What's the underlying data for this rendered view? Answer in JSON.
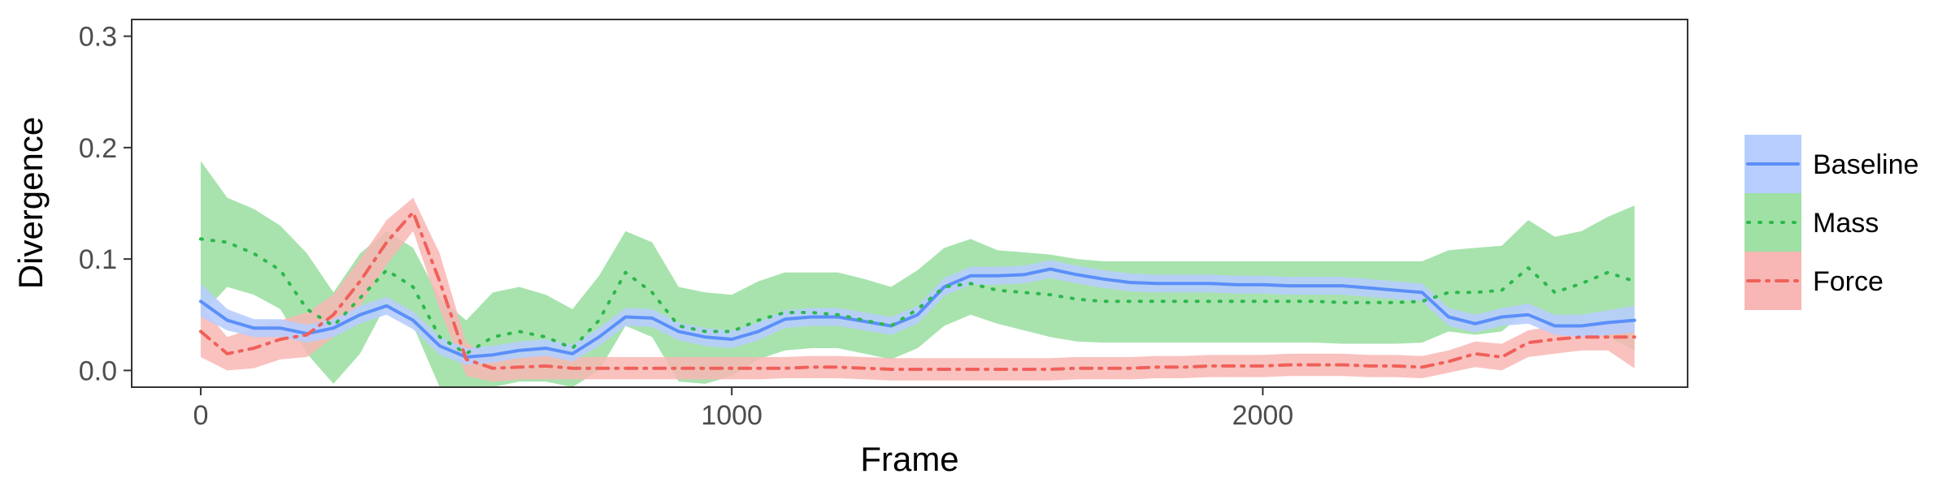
{
  "chart_data": {
    "type": "line",
    "title": "",
    "xlabel": "Frame",
    "ylabel": "Divergence",
    "xlim": [
      -130,
      2800
    ],
    "ylim": [
      -0.015,
      0.315
    ],
    "xticks": [
      0,
      1000,
      2000
    ],
    "xtick_labels": [
      "0",
      "1000",
      "2000"
    ],
    "yticks": [
      0.0,
      0.1,
      0.2,
      0.3
    ],
    "ytick_labels": [
      "0.0",
      "0.1",
      "0.2",
      "0.3"
    ],
    "grid": false,
    "legend_position": "right",
    "series": [
      {
        "name": "Baseline",
        "color": "#5b8ff9",
        "band_color": "#b7cdfd",
        "linestyle": "solid",
        "x": [
          0,
          50,
          100,
          150,
          200,
          250,
          300,
          350,
          400,
          450,
          500,
          550,
          600,
          650,
          700,
          750,
          800,
          850,
          900,
          950,
          1000,
          1050,
          1100,
          1150,
          1200,
          1250,
          1300,
          1350,
          1400,
          1450,
          1500,
          1550,
          1600,
          1650,
          1700,
          1750,
          1800,
          1850,
          1900,
          1950,
          2000,
          2050,
          2100,
          2150,
          2200,
          2250,
          2300,
          2350,
          2400,
          2450,
          2500,
          2550,
          2600,
          2650,
          2700
        ],
        "y": [
          0.062,
          0.045,
          0.038,
          0.038,
          0.033,
          0.038,
          0.05,
          0.058,
          0.045,
          0.022,
          0.012,
          0.014,
          0.018,
          0.02,
          0.015,
          0.03,
          0.048,
          0.047,
          0.035,
          0.03,
          0.028,
          0.035,
          0.046,
          0.048,
          0.048,
          0.044,
          0.04,
          0.05,
          0.075,
          0.085,
          0.085,
          0.086,
          0.091,
          0.086,
          0.082,
          0.079,
          0.078,
          0.078,
          0.078,
          0.077,
          0.077,
          0.076,
          0.076,
          0.076,
          0.074,
          0.072,
          0.07,
          0.048,
          0.042,
          0.048,
          0.05,
          0.04,
          0.04,
          0.043,
          0.045
        ],
        "lower": [
          0.048,
          0.036,
          0.03,
          0.03,
          0.025,
          0.03,
          0.042,
          0.05,
          0.037,
          0.014,
          0.005,
          0.007,
          0.011,
          0.013,
          0.008,
          0.022,
          0.04,
          0.039,
          0.027,
          0.022,
          0.02,
          0.027,
          0.038,
          0.04,
          0.04,
          0.036,
          0.032,
          0.042,
          0.067,
          0.077,
          0.077,
          0.078,
          0.083,
          0.078,
          0.074,
          0.071,
          0.07,
          0.07,
          0.07,
          0.069,
          0.069,
          0.068,
          0.068,
          0.068,
          0.066,
          0.064,
          0.062,
          0.04,
          0.034,
          0.04,
          0.042,
          0.032,
          0.03,
          0.032,
          0.034
        ],
        "upper": [
          0.078,
          0.055,
          0.046,
          0.046,
          0.041,
          0.046,
          0.058,
          0.066,
          0.053,
          0.03,
          0.02,
          0.022,
          0.026,
          0.028,
          0.023,
          0.038,
          0.056,
          0.055,
          0.043,
          0.038,
          0.036,
          0.043,
          0.054,
          0.056,
          0.056,
          0.052,
          0.048,
          0.058,
          0.083,
          0.093,
          0.093,
          0.094,
          0.099,
          0.094,
          0.09,
          0.087,
          0.086,
          0.086,
          0.086,
          0.085,
          0.085,
          0.084,
          0.084,
          0.084,
          0.082,
          0.08,
          0.078,
          0.056,
          0.05,
          0.056,
          0.06,
          0.05,
          0.05,
          0.054,
          0.058
        ]
      },
      {
        "name": "Mass",
        "color": "#2db84c",
        "band_color": "#9fe0a5",
        "linestyle": "dotted",
        "x": [
          0,
          50,
          100,
          150,
          200,
          250,
          300,
          350,
          400,
          450,
          500,
          550,
          600,
          650,
          700,
          750,
          800,
          850,
          900,
          950,
          1000,
          1050,
          1100,
          1150,
          1200,
          1250,
          1300,
          1350,
          1400,
          1450,
          1500,
          1550,
          1600,
          1650,
          1700,
          1750,
          1800,
          1850,
          1900,
          1950,
          2000,
          2050,
          2100,
          2150,
          2200,
          2250,
          2300,
          2350,
          2400,
          2450,
          2500,
          2550,
          2600,
          2650,
          2700
        ],
        "y": [
          0.118,
          0.115,
          0.105,
          0.09,
          0.055,
          0.04,
          0.065,
          0.09,
          0.075,
          0.03,
          0.015,
          0.03,
          0.035,
          0.03,
          0.02,
          0.045,
          0.088,
          0.07,
          0.04,
          0.035,
          0.035,
          0.045,
          0.052,
          0.052,
          0.05,
          0.045,
          0.04,
          0.055,
          0.075,
          0.078,
          0.072,
          0.07,
          0.068,
          0.064,
          0.062,
          0.062,
          0.062,
          0.062,
          0.062,
          0.062,
          0.062,
          0.062,
          0.062,
          0.061,
          0.061,
          0.061,
          0.062,
          0.07,
          0.07,
          0.072,
          0.092,
          0.07,
          0.078,
          0.088,
          0.08
        ],
        "lower": [
          0.05,
          0.075,
          0.068,
          0.055,
          0.015,
          -0.012,
          0.015,
          0.06,
          0.04,
          -0.015,
          -0.015,
          -0.015,
          -0.01,
          -0.01,
          -0.015,
          0.0,
          0.04,
          0.03,
          -0.01,
          -0.012,
          -0.005,
          0.01,
          0.018,
          0.02,
          0.02,
          0.015,
          0.01,
          0.02,
          0.04,
          0.05,
          0.042,
          0.036,
          0.03,
          0.026,
          0.025,
          0.025,
          0.025,
          0.025,
          0.025,
          0.025,
          0.025,
          0.025,
          0.025,
          0.024,
          0.024,
          0.024,
          0.025,
          0.035,
          0.032,
          0.035,
          0.055,
          0.035,
          0.035,
          0.03,
          0.018
        ],
        "upper": [
          0.188,
          0.155,
          0.145,
          0.13,
          0.105,
          0.07,
          0.105,
          0.125,
          0.11,
          0.065,
          0.045,
          0.07,
          0.075,
          0.068,
          0.055,
          0.085,
          0.125,
          0.115,
          0.075,
          0.07,
          0.068,
          0.08,
          0.088,
          0.088,
          0.088,
          0.082,
          0.075,
          0.09,
          0.11,
          0.118,
          0.108,
          0.106,
          0.104,
          0.1,
          0.098,
          0.098,
          0.098,
          0.098,
          0.098,
          0.098,
          0.098,
          0.098,
          0.098,
          0.098,
          0.098,
          0.098,
          0.098,
          0.108,
          0.11,
          0.112,
          0.135,
          0.12,
          0.125,
          0.138,
          0.148
        ]
      },
      {
        "name": "Force",
        "color": "#f0605a",
        "band_color": "#f8b7b4",
        "linestyle": "dashdot",
        "x": [
          0,
          50,
          100,
          150,
          200,
          250,
          300,
          350,
          400,
          450,
          500,
          550,
          600,
          650,
          700,
          750,
          800,
          850,
          900,
          950,
          1000,
          1050,
          1100,
          1150,
          1200,
          1250,
          1300,
          1350,
          1400,
          1450,
          1500,
          1550,
          1600,
          1650,
          1700,
          1750,
          1800,
          1850,
          1900,
          1950,
          2000,
          2050,
          2100,
          2150,
          2200,
          2250,
          2300,
          2350,
          2400,
          2450,
          2500,
          2550,
          2600,
          2650,
          2700
        ],
        "y": [
          0.035,
          0.015,
          0.02,
          0.028,
          0.032,
          0.05,
          0.08,
          0.115,
          0.142,
          0.08,
          0.01,
          0.002,
          0.003,
          0.004,
          0.002,
          0.002,
          0.002,
          0.002,
          0.002,
          0.002,
          0.002,
          0.002,
          0.002,
          0.003,
          0.003,
          0.002,
          0.001,
          0.001,
          0.001,
          0.001,
          0.001,
          0.001,
          0.001,
          0.002,
          0.002,
          0.002,
          0.003,
          0.003,
          0.004,
          0.004,
          0.004,
          0.005,
          0.005,
          0.005,
          0.004,
          0.004,
          0.003,
          0.008,
          0.015,
          0.012,
          0.025,
          0.028,
          0.03,
          0.03,
          0.03
        ],
        "lower": [
          0.012,
          0.0,
          0.002,
          0.01,
          0.012,
          0.03,
          0.058,
          0.095,
          0.125,
          0.055,
          -0.005,
          -0.01,
          -0.008,
          -0.008,
          -0.008,
          -0.008,
          -0.008,
          -0.008,
          -0.008,
          -0.008,
          -0.008,
          -0.008,
          -0.007,
          -0.007,
          -0.007,
          -0.008,
          -0.009,
          -0.009,
          -0.009,
          -0.009,
          -0.009,
          -0.009,
          -0.009,
          -0.008,
          -0.008,
          -0.008,
          -0.007,
          -0.007,
          -0.006,
          -0.006,
          -0.006,
          -0.005,
          -0.005,
          -0.005,
          -0.006,
          -0.006,
          -0.007,
          -0.002,
          0.003,
          0.0,
          0.012,
          0.015,
          0.018,
          0.018,
          0.002
        ],
        "upper": [
          0.058,
          0.03,
          0.038,
          0.045,
          0.052,
          0.068,
          0.1,
          0.135,
          0.155,
          0.105,
          0.025,
          0.012,
          0.012,
          0.014,
          0.012,
          0.012,
          0.012,
          0.012,
          0.012,
          0.012,
          0.012,
          0.012,
          0.012,
          0.013,
          0.013,
          0.012,
          0.011,
          0.011,
          0.011,
          0.011,
          0.011,
          0.011,
          0.011,
          0.012,
          0.012,
          0.012,
          0.013,
          0.013,
          0.014,
          0.014,
          0.014,
          0.015,
          0.015,
          0.015,
          0.014,
          0.014,
          0.013,
          0.018,
          0.026,
          0.024,
          0.036,
          0.04,
          0.042,
          0.042,
          0.045
        ]
      }
    ]
  }
}
